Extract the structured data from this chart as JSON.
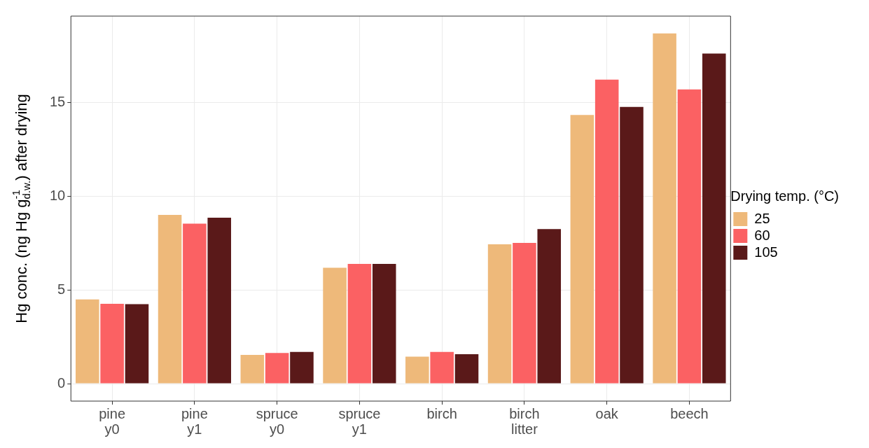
{
  "chart_data": {
    "type": "bar",
    "ylabel": "Hg conc. (ng Hg g$_{d.w.}$$^{-1}$) after drying",
    "legend_title": "Drying temp. (°C)",
    "categories": [
      "pine y0",
      "pine y1",
      "spruce y0",
      "spruce y1",
      "birch",
      "birch litter",
      "oak",
      "beech"
    ],
    "series": [
      {
        "name": "25",
        "color": "#eeb97a",
        "values": [
          4.49,
          9.0,
          1.53,
          6.18,
          1.44,
          7.43,
          14.33,
          18.68
        ]
      },
      {
        "name": "60",
        "color": "#fb6163",
        "values": [
          4.26,
          8.53,
          1.64,
          6.39,
          1.69,
          7.51,
          16.21,
          15.69
        ]
      },
      {
        "name": "105",
        "color": "#5a1919",
        "values": [
          4.24,
          8.85,
          1.69,
          6.39,
          1.57,
          8.24,
          14.76,
          17.6
        ]
      }
    ],
    "ylim": [
      -0.93,
      19.6
    ],
    "yticks": [
      0,
      5,
      10,
      15
    ],
    "grid": true,
    "legend": "right"
  }
}
